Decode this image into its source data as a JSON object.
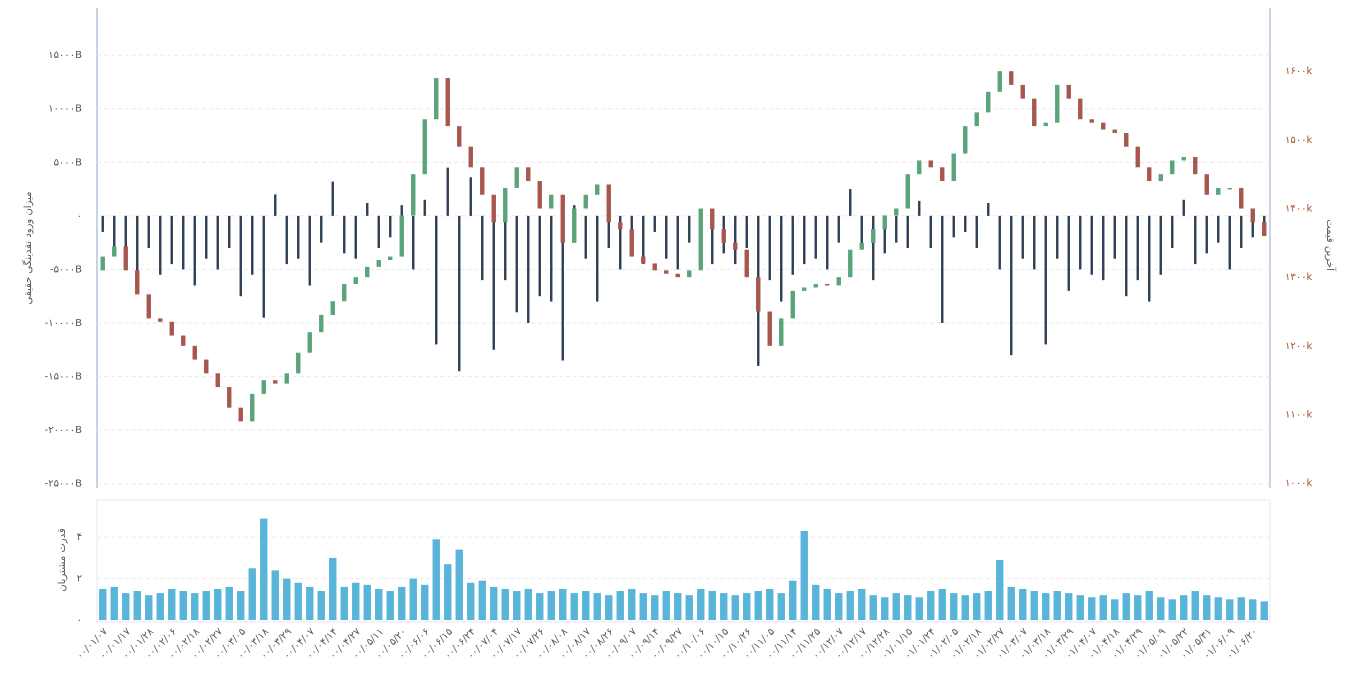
{
  "chart_data": [
    {
      "type": "combo",
      "ylabel": "میزان ورود نقدینگی حقیقی",
      "y2label": "آخرین قیمت",
      "ylim": [
        -25400,
        19400
      ],
      "yticks": [
        {
          "value": 15000,
          "label": "۱۵۰۰۰B"
        },
        {
          "value": 10000,
          "label": "۱۰۰۰۰B"
        },
        {
          "value": 5000,
          "label": "۵۰۰۰B"
        },
        {
          "value": 0,
          "label": "۰"
        },
        {
          "value": -5000,
          "label": "-۵۰۰۰B"
        },
        {
          "value": -10000,
          "label": "-۱۰۰۰۰B"
        },
        {
          "value": -15000,
          "label": "-۱۵۰۰۰B"
        },
        {
          "value": -20000,
          "label": "-۲۰۰۰۰B"
        },
        {
          "value": -25000,
          "label": "-۲۵۰۰۰B"
        }
      ],
      "y2lim": [
        993,
        1692
      ],
      "y2ticks": [
        {
          "value": 1000,
          "label": "۱۰۰۰k"
        },
        {
          "value": 1100,
          "label": "۱۱۰۰k"
        },
        {
          "value": 1200,
          "label": "۱۲۰۰k"
        },
        {
          "value": 1300,
          "label": "۱۳۰۰k"
        },
        {
          "value": 1400,
          "label": "۱۴۰۰k"
        },
        {
          "value": 1500,
          "label": "۱۵۰۰k"
        },
        {
          "value": 1600,
          "label": "۱۶۰۰k"
        }
      ],
      "grid": true,
      "series": [
        {
          "type": "bar",
          "color": "#2f3e55",
          "values": [
            -1500,
            -3500,
            -4000,
            -6000,
            -3000,
            -5500,
            -4500,
            -5000,
            -6500,
            -4000,
            -5000,
            -3000,
            -7500,
            -5500,
            -9500,
            2000,
            -4500,
            -4000,
            -6500,
            -2500,
            3200,
            -3500,
            -4000,
            1200,
            -3000,
            -2000,
            1000,
            -5000,
            1500,
            -12000,
            4500,
            -14500,
            3600,
            -6000,
            -12500,
            -6000,
            -9000,
            -10000,
            -7500,
            -8000,
            -13500,
            1000,
            -4000,
            -8000,
            -3000,
            -5000,
            -2500,
            -4500,
            -1500,
            -4000,
            -5000,
            -2500,
            -3000,
            -4500,
            -3500,
            -4500,
            -3000,
            -14000,
            -6000,
            -8000,
            -5500,
            -4500,
            -4000,
            -5000,
            -2500,
            2500,
            -3000,
            -6000,
            -3500,
            -2500,
            -3000,
            1400,
            -3000,
            -10000,
            -2000,
            -1500,
            -3000,
            1200,
            -5000,
            -13000,
            -4000,
            -5000,
            -12000,
            -4000,
            -7000,
            -5000,
            -5500,
            -6000,
            -4000,
            -7500,
            -6000,
            -8000,
            -5500,
            -3000,
            1500,
            -4500,
            -3500,
            -2500,
            -5000,
            -3000,
            -2000,
            -1200
          ]
        },
        {
          "type": "candlestick",
          "axis": "y2",
          "color_up": "#5aa47a",
          "color_down": "#a8574e",
          "open": [
            1310,
            1330,
            1345,
            1310,
            1275,
            1240,
            1235,
            1215,
            1200,
            1180,
            1160,
            1140,
            1110,
            1090,
            1130,
            1150,
            1145,
            1160,
            1190,
            1220,
            1245,
            1265,
            1290,
            1300,
            1315,
            1325,
            1330,
            1390,
            1450,
            1530,
            1590,
            1520,
            1490,
            1460,
            1420,
            1380,
            1430,
            1460,
            1440,
            1400,
            1420,
            1350,
            1400,
            1420,
            1435,
            1380,
            1370,
            1330,
            1320,
            1310,
            1305,
            1300,
            1310,
            1400,
            1370,
            1350,
            1340,
            1300,
            1250,
            1200,
            1240,
            1280,
            1285,
            1290,
            1288,
            1300,
            1340,
            1350,
            1370,
            1390,
            1400,
            1450,
            1470,
            1460,
            1440,
            1480,
            1520,
            1540,
            1570,
            1600,
            1580,
            1560,
            1520,
            1525,
            1580,
            1560,
            1530,
            1525,
            1515,
            1510,
            1490,
            1460,
            1440,
            1450,
            1470,
            1475,
            1450,
            1420,
            1430,
            1430,
            1400,
            1380
          ],
          "close": [
            1330,
            1345,
            1310,
            1275,
            1240,
            1235,
            1215,
            1200,
            1180,
            1160,
            1140,
            1110,
            1090,
            1130,
            1150,
            1145,
            1160,
            1190,
            1220,
            1245,
            1265,
            1290,
            1300,
            1315,
            1325,
            1330,
            1390,
            1450,
            1530,
            1590,
            1520,
            1490,
            1460,
            1420,
            1380,
            1430,
            1460,
            1440,
            1400,
            1420,
            1350,
            1400,
            1420,
            1435,
            1380,
            1370,
            1330,
            1320,
            1310,
            1305,
            1300,
            1310,
            1400,
            1370,
            1350,
            1340,
            1300,
            1250,
            1200,
            1240,
            1280,
            1285,
            1290,
            1288,
            1300,
            1340,
            1350,
            1370,
            1390,
            1400,
            1450,
            1470,
            1460,
            1440,
            1480,
            1520,
            1540,
            1570,
            1600,
            1580,
            1560,
            1520,
            1525,
            1580,
            1560,
            1530,
            1525,
            1515,
            1510,
            1490,
            1460,
            1440,
            1450,
            1470,
            1475,
            1450,
            1420,
            1430,
            1430,
            1400,
            1380,
            1360
          ]
        }
      ]
    },
    {
      "type": "bar",
      "ylabel": "قدرت مشتریان",
      "ylim": [
        0,
        5.8
      ],
      "yticks": [
        {
          "value": 0,
          "label": "۰"
        },
        {
          "value": 2,
          "label": "۲"
        },
        {
          "value": 4,
          "label": "۴"
        }
      ],
      "grid": true,
      "color": "#58b4d8",
      "categories": [
        "۰۰/۰۱/۰۷",
        null,
        "۰۰/۰۱/۱۷",
        null,
        "۰۰/۰۱/۲۸",
        null,
        "۰۰/۰۲/۰۶",
        null,
        "۰۰/۰۲/۱۸",
        null,
        "۰۰/۰۲/۲۷",
        null,
        "۰۰/۰۳/۰۵",
        null,
        "۰۰/۰۳/۱۸",
        null,
        "۰۰/۰۳/۲۹",
        null,
        "۰۰/۰۴/۰۷",
        null,
        "۰۰/۰۴/۱۴",
        null,
        "۰۰/۰۴/۲۷",
        null,
        "۰۰/۰۵/۱۱",
        null,
        "۰۰/۰۵/۲۰",
        null,
        "۰۰/۰۶/۰۶",
        null,
        "۰۰/۰۶/۱۵",
        null,
        "۰۰/۰۶/۲۴",
        null,
        "۰۰/۰۷/۰۴",
        null,
        "۰۰/۰۷/۱۷",
        null,
        "۰۰/۰۷/۲۶",
        null,
        "۰۰/۰۸/۰۸",
        null,
        "۰۰/۰۸/۱۷",
        null,
        "۰۰/۰۸/۲۶",
        null,
        "۰۰/۰۹/۰۷",
        null,
        "۰۰/۰۹/۱۴",
        null,
        "۰۰/۰۹/۲۷",
        null,
        "۰۰/۱۰/۰۶",
        null,
        "۰۰/۱۰/۱۵",
        null,
        "۰۰/۱۰/۲۶",
        null,
        "۰۰/۱۱/۰۵",
        null,
        "۰۰/۱۱/۱۴",
        null,
        "۰۰/۱۱/۲۵",
        null,
        "۰۰/۱۲/۰۷",
        null,
        "۰۰/۱۲/۱۷",
        null,
        "۰۰/۱۲/۲۸",
        null,
        "۰۱/۰۱/۱۵",
        null,
        "۰۱/۰۱/۲۴",
        null,
        "۰۱/۰۲/۰۵",
        null,
        "۰۱/۰۲/۱۸",
        null,
        "۰۱/۰۲/۲۷",
        null,
        "۰۱/۰۳/۰۷",
        null,
        "۰۱/۰۳/۱۸",
        null,
        "۰۱/۰۳/۲۹",
        null,
        "۰۱/۰۴/۰۷",
        null,
        "۰۱/۰۴/۱۸",
        null,
        "۰۱/۰۴/۲۹",
        null,
        "۰۱/۰۵/۰۹",
        null,
        "۰۱/۰۵/۲۲",
        null,
        "۰۱/۰۵/۳۱",
        null,
        "۰۱/۰۶/۰۹",
        null,
        "۰۱/۰۶/۲۰",
        null
      ],
      "values": [
        1.5,
        1.6,
        1.3,
        1.4,
        1.2,
        1.3,
        1.5,
        1.4,
        1.3,
        1.4,
        1.5,
        1.6,
        1.4,
        2.5,
        4.9,
        2.4,
        2.0,
        1.8,
        1.6,
        1.4,
        3.0,
        1.6,
        1.8,
        1.7,
        1.5,
        1.4,
        1.6,
        2.0,
        1.7,
        3.9,
        2.7,
        3.4,
        1.8,
        1.9,
        1.6,
        1.5,
        1.4,
        1.5,
        1.3,
        1.4,
        1.5,
        1.3,
        1.4,
        1.3,
        1.2,
        1.4,
        1.5,
        1.3,
        1.2,
        1.4,
        1.3,
        1.2,
        1.5,
        1.4,
        1.3,
        1.2,
        1.3,
        1.4,
        1.5,
        1.3,
        1.9,
        4.3,
        1.7,
        1.5,
        1.3,
        1.4,
        1.5,
        1.2,
        1.1,
        1.3,
        1.2,
        1.1,
        1.4,
        1.5,
        1.3,
        1.2,
        1.3,
        1.4,
        2.9,
        1.6,
        1.5,
        1.4,
        1.3,
        1.4,
        1.3,
        1.2,
        1.1,
        1.2,
        1.0,
        1.3,
        1.2,
        1.4,
        1.1,
        1.0,
        1.2,
        1.4,
        1.2,
        1.1,
        1.0,
        1.1,
        1.0,
        0.9
      ]
    }
  ]
}
